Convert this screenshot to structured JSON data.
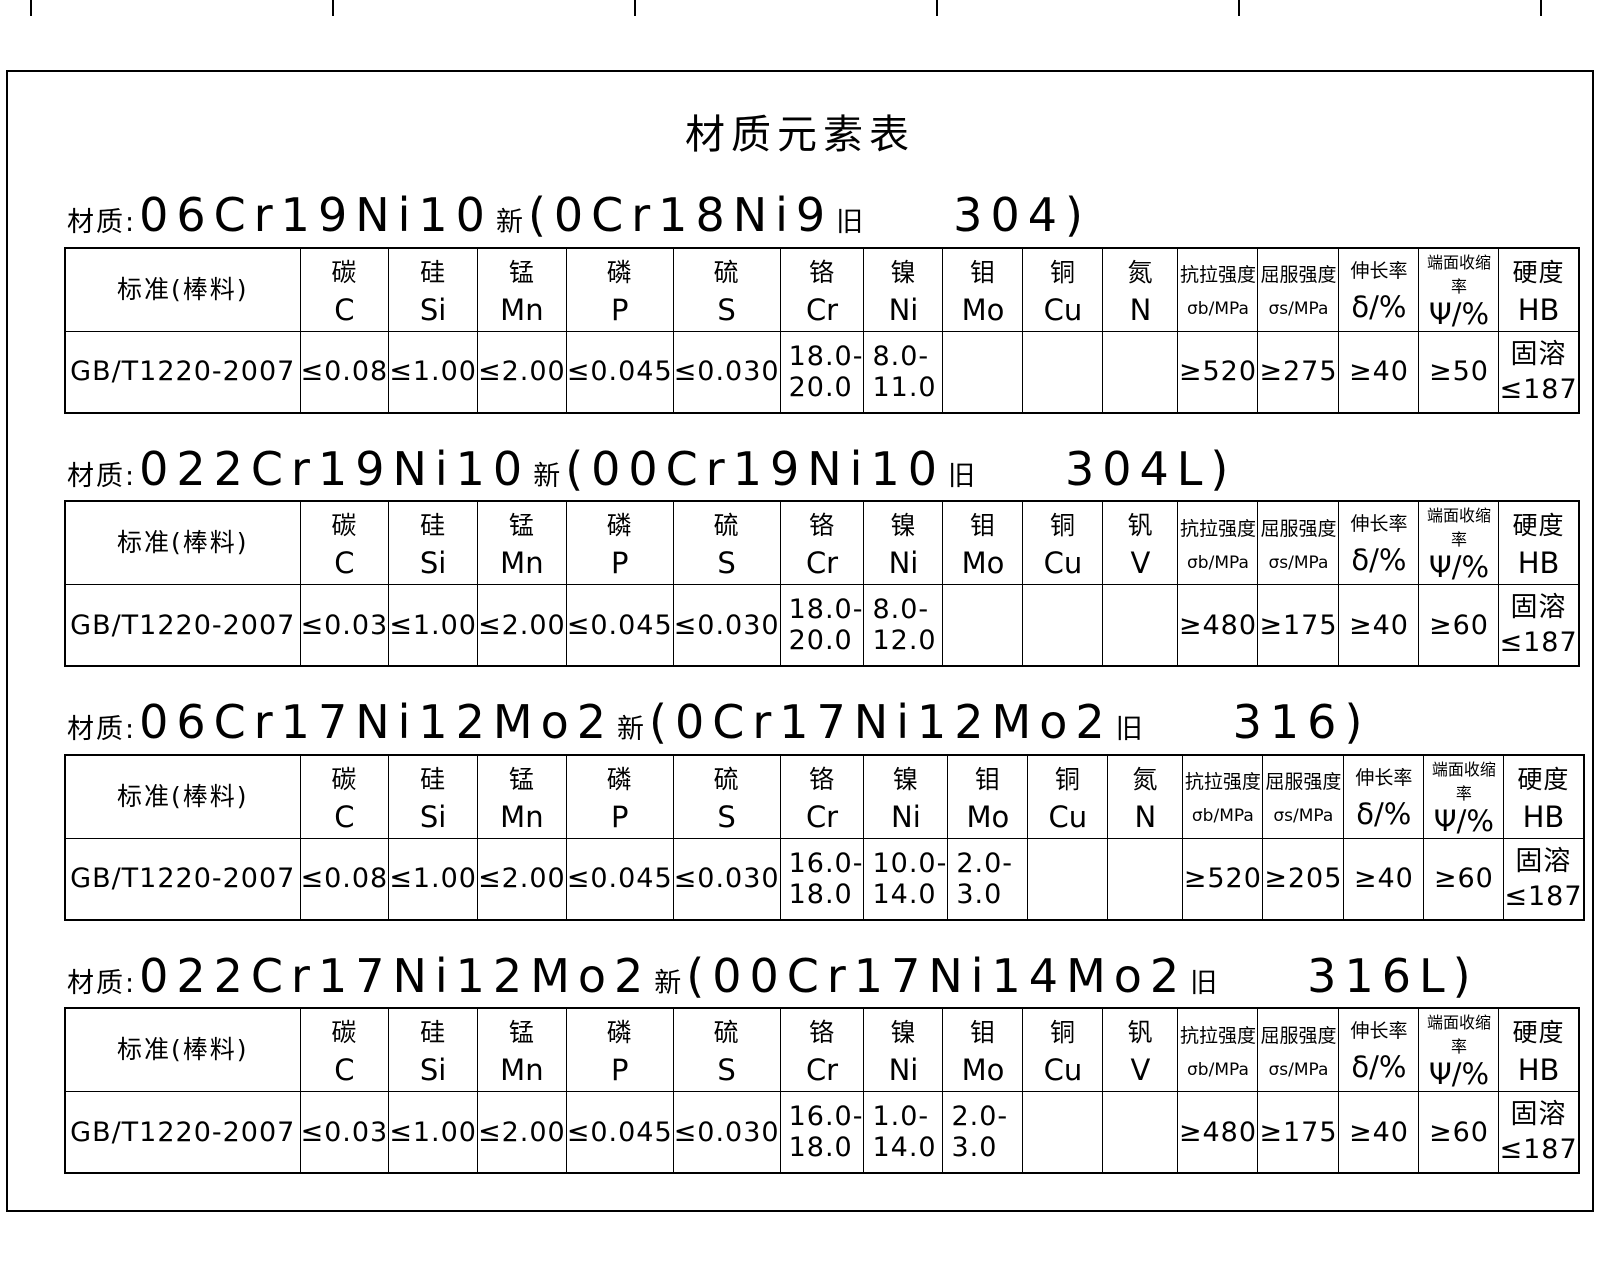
{
  "page": {
    "title": "材质元素表"
  },
  "colors": {
    "line": "#000000",
    "background": "#ffffff",
    "text": "#000000"
  },
  "sections": [
    {
      "label": {
        "prefix": "材质:",
        "new_code": "06Cr19Ni10",
        "new_mark": "新",
        "old_code": "(0Cr18Ni9",
        "old_mark": "旧",
        "grade": "304)"
      },
      "table": {
        "keys": [
          "standard",
          "carbon",
          "silicon",
          "manganese",
          "phosphorus",
          "sulfur",
          "chromium",
          "nickel",
          "molybdenum",
          "copper",
          "nitrogen",
          "tensile-strength",
          "yield-strength",
          "elongation",
          "area-reduction",
          "hardness"
        ],
        "header_top": [
          "标准(棒料)",
          "碳",
          "硅",
          "锰",
          "磷",
          "硫",
          "铬",
          "镍",
          "钼",
          "铜",
          "氮",
          "抗拉强度",
          "屈服强度",
          "伸长率",
          "端面收缩率",
          "硬度"
        ],
        "header_bottom": [
          "",
          "C",
          "Si",
          "Mn",
          "P",
          "S",
          "Cr",
          "Ni",
          "Mo",
          "Cu",
          "N",
          "σb/MPa",
          "σs/MPa",
          "δ/%",
          "Ψ/%",
          "HB"
        ],
        "row": [
          "GB/T1220-2007",
          "≤0.08",
          "≤1.00",
          "≤2.00",
          "≤0.045",
          "≤0.030",
          "18.0-\n20.0",
          "8.0-\n11.0",
          "",
          "",
          "",
          "≥520",
          "≥275",
          "≥40",
          "≥50",
          "固溶\n≤187"
        ]
      }
    },
    {
      "label": {
        "prefix": "材质:",
        "new_code": "022Cr19Ni10",
        "new_mark": "新",
        "old_code": "(00Cr19Ni10",
        "old_mark": "旧",
        "grade": "304L)"
      },
      "table": {
        "keys": [
          "standard",
          "carbon",
          "silicon",
          "manganese",
          "phosphorus",
          "sulfur",
          "chromium",
          "nickel",
          "molybdenum",
          "copper",
          "vanadium",
          "tensile-strength",
          "yield-strength",
          "elongation",
          "area-reduction",
          "hardness"
        ],
        "header_top": [
          "标准(棒料)",
          "碳",
          "硅",
          "锰",
          "磷",
          "硫",
          "铬",
          "镍",
          "钼",
          "铜",
          "钒",
          "抗拉强度",
          "屈服强度",
          "伸长率",
          "端面收缩率",
          "硬度"
        ],
        "header_bottom": [
          "",
          "C",
          "Si",
          "Mn",
          "P",
          "S",
          "Cr",
          "Ni",
          "Mo",
          "Cu",
          "V",
          "σb/MPa",
          "σs/MPa",
          "δ/%",
          "Ψ/%",
          "HB"
        ],
        "row": [
          "GB/T1220-2007",
          "≤0.03",
          "≤1.00",
          "≤2.00",
          "≤0.045",
          "≤0.030",
          "18.0-\n20.0",
          "8.0-\n12.0",
          "",
          "",
          "",
          "≥480",
          "≥175",
          "≥40",
          "≥60",
          "固溶\n≤187"
        ]
      }
    },
    {
      "label": {
        "prefix": "材质:",
        "new_code": "06Cr17Ni12Mo2",
        "new_mark": "新",
        "old_code": "(0Cr17Ni12Mo2",
        "old_mark": "旧",
        "grade": "316)"
      },
      "table": {
        "keys": [
          "standard",
          "carbon",
          "silicon",
          "manganese",
          "phosphorus",
          "sulfur",
          "chromium",
          "nickel",
          "molybdenum",
          "copper",
          "nitrogen",
          "tensile-strength",
          "yield-strength",
          "elongation",
          "area-reduction",
          "hardness"
        ],
        "header_top": [
          "标准(棒料)",
          "碳",
          "硅",
          "锰",
          "磷",
          "硫",
          "铬",
          "镍",
          "钼",
          "铜",
          "氮",
          "抗拉强度",
          "屈服强度",
          "伸长率",
          "端面收缩率",
          "硬度"
        ],
        "header_bottom": [
          "",
          "C",
          "Si",
          "Mn",
          "P",
          "S",
          "Cr",
          "Ni",
          "Mo",
          "Cu",
          "N",
          "σb/MPa",
          "σs/MPa",
          "δ/%",
          "Ψ/%",
          "HB"
        ],
        "row": [
          "GB/T1220-2007",
          "≤0.08",
          "≤1.00",
          "≤2.00",
          "≤0.045",
          "≤0.030",
          "16.0-\n18.0",
          "10.0-\n14.0",
          "2.0-\n3.0",
          "",
          "",
          "≥520",
          "≥205",
          "≥40",
          "≥60",
          "固溶\n≤187"
        ]
      }
    },
    {
      "label": {
        "prefix": "材质:",
        "new_code": "022Cr17Ni12Mo2",
        "new_mark": "新",
        "old_code": "(00Cr17Ni14Mo2",
        "old_mark": "旧",
        "grade": "316L)"
      },
      "table": {
        "keys": [
          "standard",
          "carbon",
          "silicon",
          "manganese",
          "phosphorus",
          "sulfur",
          "chromium",
          "nickel",
          "molybdenum",
          "copper",
          "vanadium",
          "tensile-strength",
          "yield-strength",
          "elongation",
          "area-reduction",
          "hardness"
        ],
        "header_top": [
          "标准(棒料)",
          "碳",
          "硅",
          "锰",
          "磷",
          "硫",
          "铬",
          "镍",
          "钼",
          "铜",
          "钒",
          "抗拉强度",
          "屈服强度",
          "伸长率",
          "端面收缩率",
          "硬度"
        ],
        "header_bottom": [
          "",
          "C",
          "Si",
          "Mn",
          "P",
          "S",
          "Cr",
          "Ni",
          "Mo",
          "Cu",
          "V",
          "σb/MPa",
          "σs/MPa",
          "δ/%",
          "Ψ/%",
          "HB"
        ],
        "row": [
          "GB/T1220-2007",
          "≤0.03",
          "≤1.00",
          "≤2.00",
          "≤0.045",
          "≤0.030",
          "16.0-\n18.0",
          "1.0-\n14.0",
          "2.0-\n3.0",
          "",
          "",
          "≥480",
          "≥175",
          "≥40",
          "≥60",
          "固溶\n≤187"
        ]
      }
    }
  ]
}
